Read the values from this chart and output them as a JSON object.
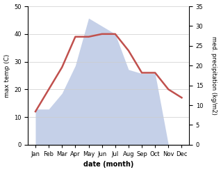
{
  "months": [
    "Jan",
    "Feb",
    "Mar",
    "Apr",
    "May",
    "Jun",
    "Jul",
    "Aug",
    "Sep",
    "Oct",
    "Nov",
    "Dec"
  ],
  "temperature": [
    12,
    20,
    28,
    39,
    39,
    40,
    40,
    34,
    26,
    26,
    20,
    17
  ],
  "precipitation": [
    9,
    9,
    13,
    20,
    32,
    30,
    28,
    19,
    18,
    18,
    0,
    0
  ],
  "temp_color": "#c0504d",
  "precip_fill_color": "#c5d0e8",
  "temp_ylim": [
    0,
    50
  ],
  "precip_ylim": [
    0,
    35
  ],
  "temp_yticks": [
    0,
    10,
    20,
    30,
    40,
    50
  ],
  "precip_yticks": [
    0,
    5,
    10,
    15,
    20,
    25,
    30,
    35
  ],
  "ylabel_left": "max temp (C)",
  "ylabel_right": "med. precipitation (kg/m2)",
  "xlabel": "date (month)",
  "figsize": [
    3.18,
    2.47
  ],
  "dpi": 100,
  "bg_color": "#ffffff"
}
